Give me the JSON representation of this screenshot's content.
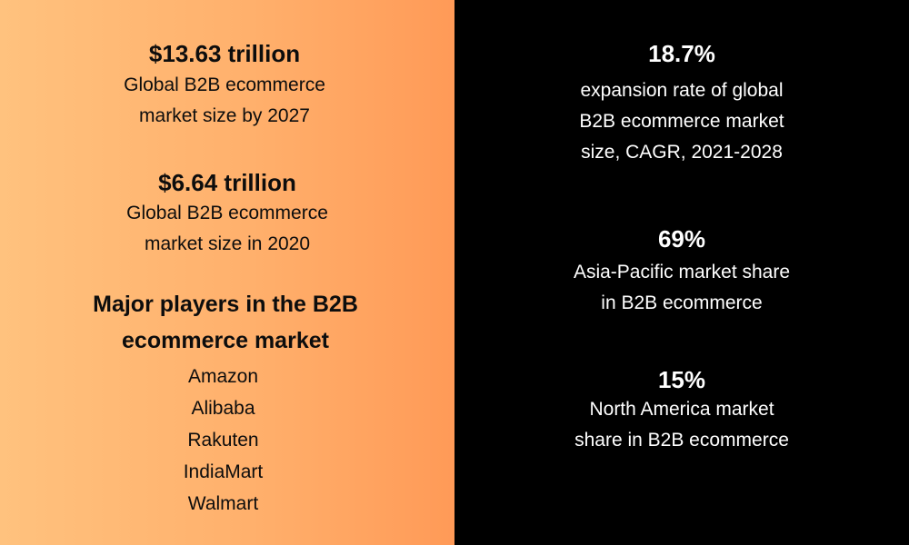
{
  "left": {
    "stat1": {
      "value": "$13.63 trillion",
      "desc_line1": "Global B2B ecommerce",
      "desc_line2": "market size by 2027"
    },
    "stat2": {
      "value": "$6.64 trillion",
      "desc_line1": "Global B2B ecommerce",
      "desc_line2": "market size in 2020"
    },
    "players": {
      "heading_line1": "Major players in the B2B",
      "heading_line2": "ecommerce market",
      "items": [
        "Amazon",
        "Alibaba",
        "Rakuten",
        "IndiaMart",
        "Walmart"
      ]
    }
  },
  "right": {
    "stat1": {
      "value": "18.7%",
      "desc_line1": "expansion rate of global",
      "desc_line2": "B2B ecommerce market",
      "desc_line3": "size, CAGR, 2021-2028"
    },
    "stat2": {
      "value": "69%",
      "desc_line1": "Asia-Pacific market share",
      "desc_line2": "in B2B ecommerce"
    },
    "stat3": {
      "value": "15%",
      "desc_line1": "North America market",
      "desc_line2": "share in B2B ecommerce"
    }
  },
  "colors": {
    "left_gradient_start": "#ffc27e",
    "left_gradient_end": "#ff9a57",
    "right_background": "#000000"
  }
}
